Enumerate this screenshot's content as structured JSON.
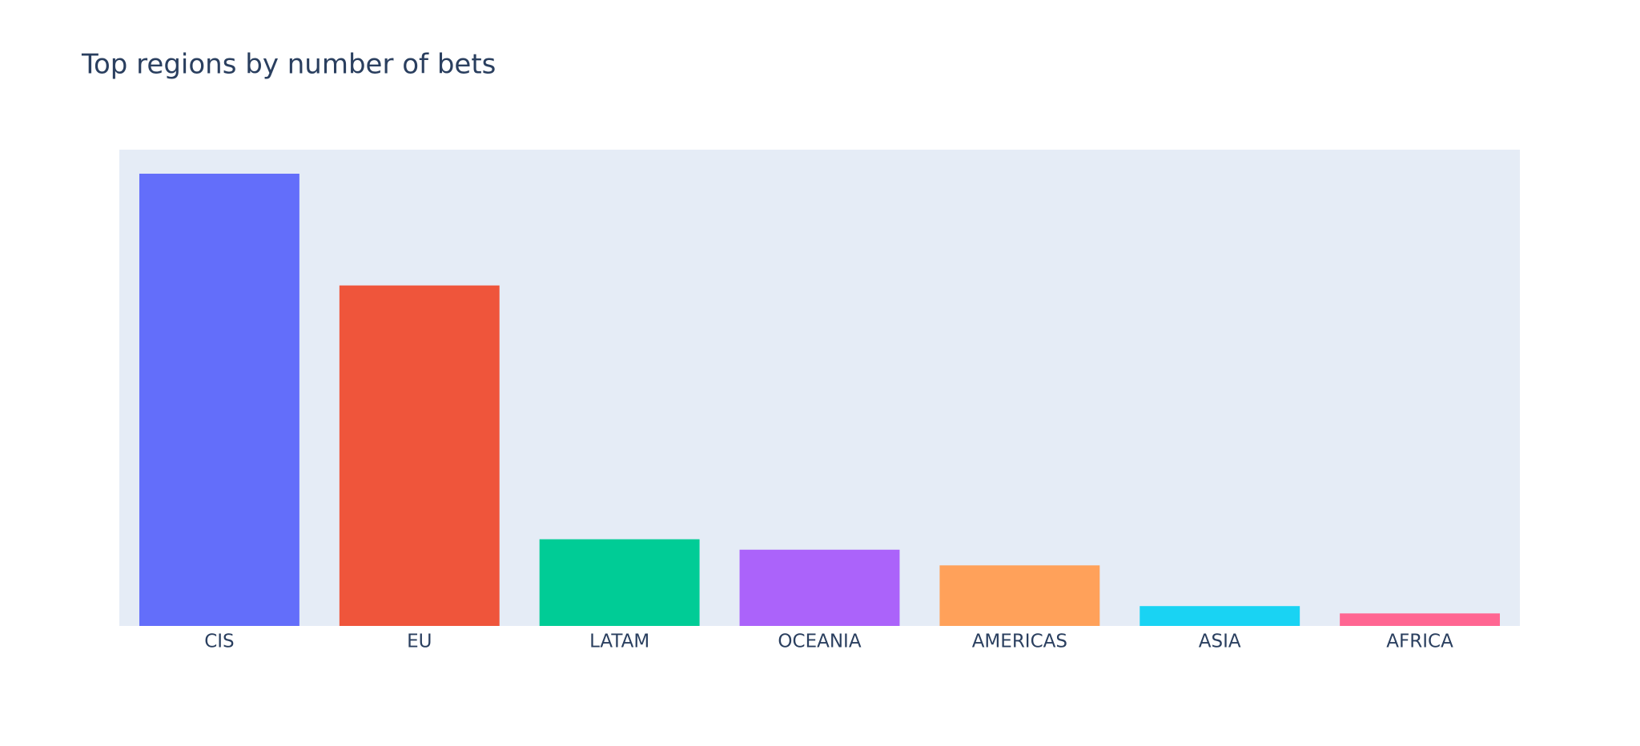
{
  "chart_data": {
    "type": "bar",
    "title": "Top regions by number of bets",
    "categories": [
      "CIS",
      "EU",
      "LATAM",
      "OCEANIA",
      "AMERICAS",
      "ASIA",
      "AFRICA"
    ],
    "values": [
      433,
      326,
      83,
      73,
      58,
      19,
      12
    ],
    "colors": [
      "#636efa",
      "#ef553b",
      "#00cc96",
      "#ab63fa",
      "#ffa15a",
      "#19d3f3",
      "#ff6692"
    ],
    "ylim": [
      0,
      456
    ],
    "plot_background": "#e5ecf6"
  }
}
